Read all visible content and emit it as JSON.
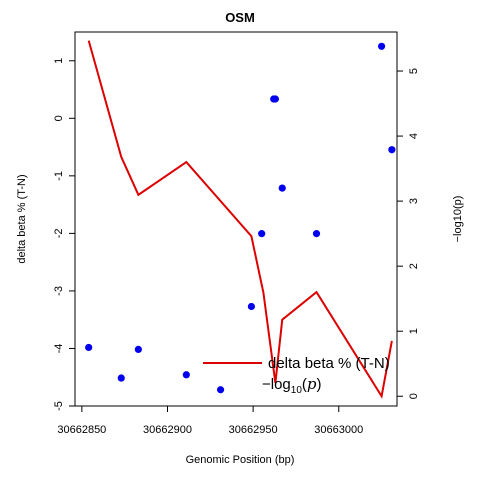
{
  "chart_data": {
    "type": "line+scatter",
    "title": "OSM",
    "xlabel": "Genomic Position (bp)",
    "ylabel_left": "delta beta % (T-N)",
    "ylabel_right": "−log10(p)",
    "xlim": [
      30662846,
      30663034
    ],
    "ylim_left": [
      -5,
      1.5
    ],
    "ylim_right": [
      -0.15,
      5.6
    ],
    "x_ticks": [
      30662850,
      30662900,
      30662950,
      30663000
    ],
    "x_tick_labels": [
      "30662850",
      "30662900",
      "30662950",
      "30663000"
    ],
    "y_left_ticks": [
      -5,
      -4,
      -3,
      -2,
      -1,
      0,
      1
    ],
    "y_left_tick_labels": [
      "-5",
      "-4",
      "-3",
      "-2",
      "-1",
      "0",
      "1"
    ],
    "y_right_ticks": [
      0,
      1,
      2,
      3,
      4,
      5
    ],
    "y_right_tick_labels": [
      "0",
      "1",
      "2",
      "3",
      "4",
      "5"
    ],
    "series": [
      {
        "name": "delta beta % (T-N)",
        "axis": "left",
        "kind": "line",
        "color": "#dd0000",
        "x": [
          30662854,
          30662873,
          30662883,
          30662911,
          30662949,
          30662956,
          30662963,
          30662967,
          30662987,
          30663025,
          30663031
        ],
        "y": [
          1.35,
          -0.67,
          -1.33,
          -0.76,
          -2.05,
          -3.03,
          -4.6,
          -3.5,
          -3.02,
          -4.83,
          -3.87
        ]
      },
      {
        "name": "-log10(p)",
        "axis": "right",
        "kind": "points",
        "color": "#0000ee",
        "x": [
          30662854,
          30662873,
          30662883,
          30662911,
          30662931,
          30662949,
          30662955,
          30662962,
          30662963,
          30662967,
          30662987,
          30663025,
          30663031
        ],
        "y": [
          0.75,
          0.28,
          0.72,
          0.33,
          0.1,
          1.38,
          2.5,
          4.57,
          4.57,
          3.2,
          2.5,
          5.38,
          3.79
        ]
      }
    ],
    "legend": {
      "position": "bottom-right",
      "entries": [
        {
          "type": "line",
          "color": "#dd0000",
          "text": "delta beta % (T-N)"
        },
        {
          "type": "math",
          "color": "#dd0000",
          "prefix": "−log",
          "sub": "10",
          "arg": "p"
        }
      ]
    }
  }
}
